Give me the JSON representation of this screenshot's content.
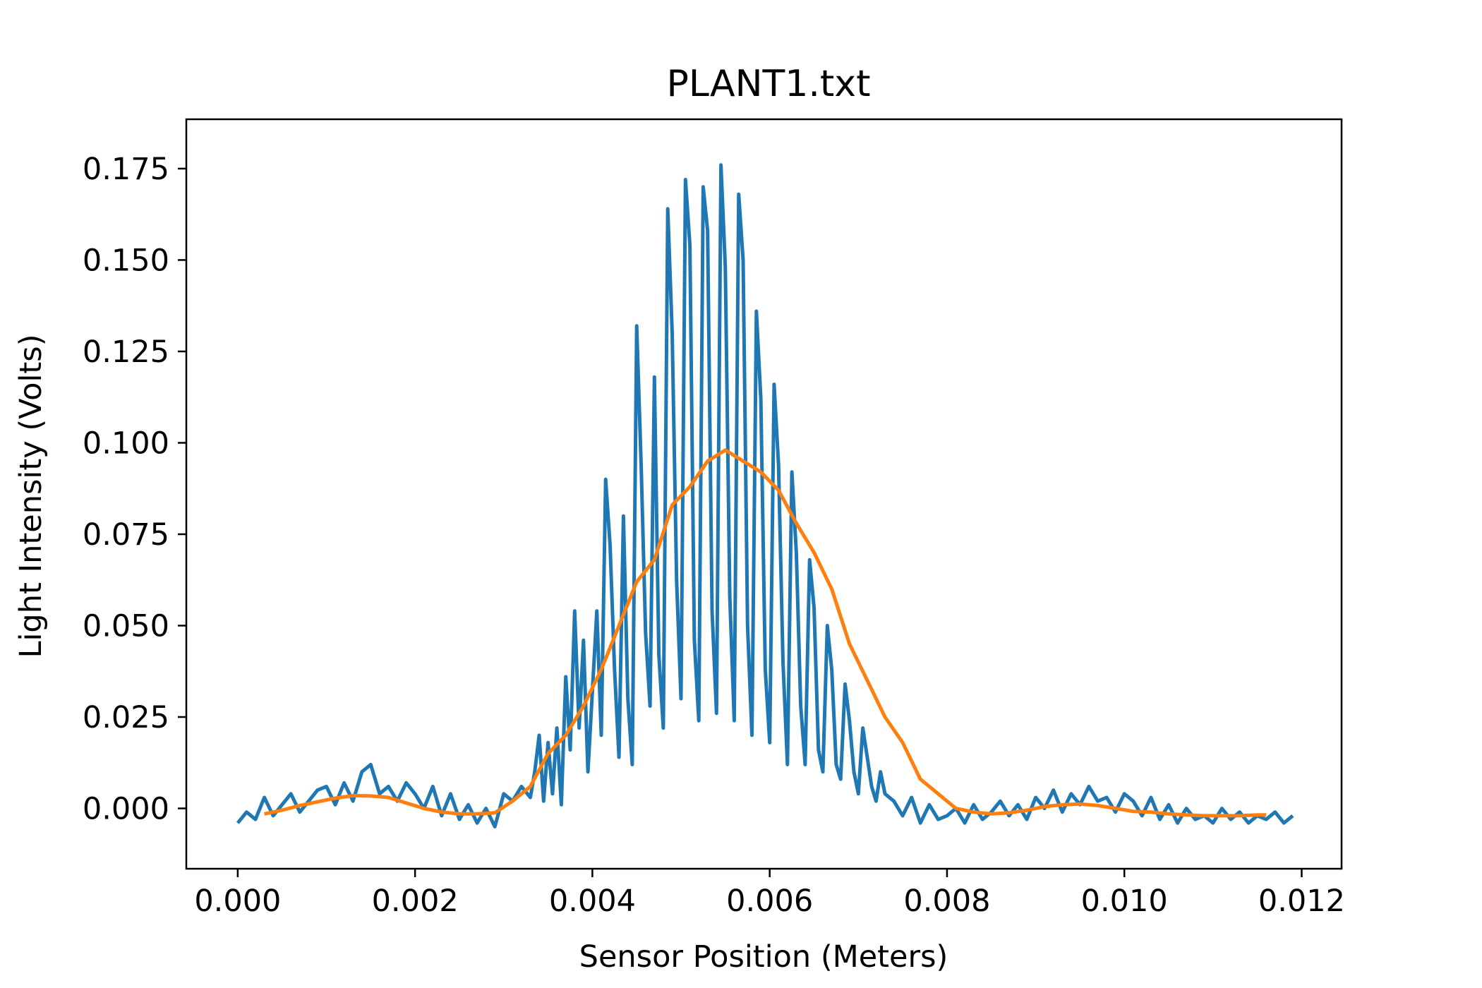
{
  "chart_data": {
    "type": "line",
    "title": "PLANT1.txt",
    "xlabel": "Sensor Position (Meters)",
    "ylabel": "Light Intensity (Volts)",
    "xlim": [
      -0.00058,
      0.01245
    ],
    "ylim": [
      -0.0165,
      0.1885
    ],
    "xticks": [
      0.0,
      0.002,
      0.004,
      0.006,
      0.008,
      0.01,
      0.012
    ],
    "xtick_labels": [
      "0.000",
      "0.002",
      "0.004",
      "0.006",
      "0.008",
      "0.010",
      "0.012"
    ],
    "yticks": [
      0.0,
      0.025,
      0.05,
      0.075,
      0.1,
      0.125,
      0.15,
      0.175
    ],
    "ytick_labels": [
      "0.000",
      "0.025",
      "0.050",
      "0.075",
      "0.100",
      "0.125",
      "0.150",
      "0.175"
    ],
    "grid": false,
    "legend": "none",
    "series": [
      {
        "color": "#1f77b4",
        "style": "raw",
        "x": [
          0.0,
          0.0001,
          0.0002,
          0.0003,
          0.0004,
          0.0005,
          0.0006,
          0.0007,
          0.0008,
          0.0009,
          0.001,
          0.0011,
          0.0012,
          0.0013,
          0.0014,
          0.0015,
          0.0016,
          0.0017,
          0.0018,
          0.0019,
          0.002,
          0.0021,
          0.0022,
          0.0023,
          0.0024,
          0.0025,
          0.0026,
          0.0027,
          0.0028,
          0.0029,
          0.003,
          0.0031,
          0.0032,
          0.0033,
          0.00335,
          0.0034,
          0.00345,
          0.0035,
          0.00355,
          0.0036,
          0.00365,
          0.0037,
          0.00375,
          0.0038,
          0.00385,
          0.0039,
          0.00395,
          0.004,
          0.00405,
          0.0041,
          0.00415,
          0.0042,
          0.00425,
          0.0043,
          0.00435,
          0.0044,
          0.00445,
          0.0045,
          0.00455,
          0.0046,
          0.00465,
          0.0047,
          0.00475,
          0.0048,
          0.00485,
          0.0049,
          0.00495,
          0.005,
          0.00505,
          0.0051,
          0.00515,
          0.0052,
          0.00525,
          0.0053,
          0.00535,
          0.0054,
          0.00545,
          0.0055,
          0.00555,
          0.0056,
          0.00565,
          0.0057,
          0.00575,
          0.0058,
          0.00585,
          0.0059,
          0.00595,
          0.006,
          0.00605,
          0.0061,
          0.00615,
          0.0062,
          0.00625,
          0.0063,
          0.00635,
          0.0064,
          0.00645,
          0.0065,
          0.00655,
          0.0066,
          0.00665,
          0.0067,
          0.00675,
          0.0068,
          0.00685,
          0.0069,
          0.00695,
          0.007,
          0.00705,
          0.0071,
          0.00715,
          0.0072,
          0.00725,
          0.0073,
          0.0074,
          0.0075,
          0.0076,
          0.0077,
          0.0078,
          0.0079,
          0.008,
          0.0081,
          0.0082,
          0.0083,
          0.0084,
          0.0085,
          0.0086,
          0.0087,
          0.0088,
          0.0089,
          0.009,
          0.0091,
          0.0092,
          0.0093,
          0.0094,
          0.0095,
          0.0096,
          0.0097,
          0.0098,
          0.0099,
          0.01,
          0.0101,
          0.0102,
          0.0103,
          0.0104,
          0.0105,
          0.0106,
          0.0107,
          0.0108,
          0.0109,
          0.011,
          0.0111,
          0.0112,
          0.0113,
          0.0114,
          0.0115,
          0.0116,
          0.0117,
          0.0118,
          0.0119
        ],
        "y": [
          -0.004,
          -0.001,
          -0.003,
          0.003,
          -0.002,
          0.001,
          0.004,
          -0.001,
          0.002,
          0.005,
          0.006,
          0.001,
          0.007,
          0.002,
          0.01,
          0.012,
          0.004,
          0.006,
          0.002,
          0.007,
          0.004,
          0.0,
          0.006,
          -0.002,
          0.004,
          -0.003,
          0.001,
          -0.004,
          0.0,
          -0.005,
          0.004,
          0.002,
          0.006,
          0.003,
          0.01,
          0.02,
          0.002,
          0.018,
          0.004,
          0.022,
          0.001,
          0.036,
          0.016,
          0.054,
          0.022,
          0.046,
          0.01,
          0.032,
          0.054,
          0.02,
          0.09,
          0.072,
          0.038,
          0.014,
          0.08,
          0.03,
          0.012,
          0.132,
          0.094,
          0.048,
          0.028,
          0.118,
          0.042,
          0.022,
          0.164,
          0.13,
          0.062,
          0.03,
          0.172,
          0.154,
          0.046,
          0.024,
          0.17,
          0.158,
          0.054,
          0.026,
          0.176,
          0.148,
          0.058,
          0.024,
          0.168,
          0.15,
          0.05,
          0.02,
          0.136,
          0.112,
          0.038,
          0.018,
          0.116,
          0.094,
          0.04,
          0.012,
          0.092,
          0.07,
          0.028,
          0.012,
          0.068,
          0.055,
          0.016,
          0.01,
          0.05,
          0.038,
          0.012,
          0.008,
          0.034,
          0.024,
          0.01,
          0.004,
          0.022,
          0.014,
          0.006,
          0.002,
          0.01,
          0.004,
          0.002,
          -0.002,
          0.003,
          -0.004,
          0.001,
          -0.003,
          -0.002,
          0.0,
          -0.004,
          0.001,
          -0.003,
          -0.001,
          0.002,
          -0.002,
          0.001,
          -0.003,
          0.003,
          0.0,
          0.005,
          -0.001,
          0.004,
          0.001,
          0.006,
          0.002,
          0.003,
          -0.001,
          0.004,
          0.002,
          -0.002,
          0.003,
          -0.003,
          0.001,
          -0.004,
          0.0,
          -0.003,
          -0.002,
          -0.004,
          0.0,
          -0.003,
          -0.001,
          -0.004,
          -0.002,
          -0.003,
          -0.001,
          -0.004,
          -0.002
        ]
      },
      {
        "color": "#ff7f0e",
        "style": "smoothed",
        "x": [
          0.0003,
          0.0005,
          0.0007,
          0.0009,
          0.0011,
          0.0013,
          0.0015,
          0.0017,
          0.0019,
          0.0021,
          0.0023,
          0.0025,
          0.0027,
          0.0029,
          0.0031,
          0.0033,
          0.0035,
          0.0037,
          0.0039,
          0.0041,
          0.0043,
          0.0045,
          0.0047,
          0.0049,
          0.0051,
          0.0053,
          0.0055,
          0.0057,
          0.0059,
          0.0061,
          0.0063,
          0.0065,
          0.0067,
          0.0069,
          0.0071,
          0.0073,
          0.0075,
          0.0077,
          0.0079,
          0.0081,
          0.0083,
          0.0085,
          0.0087,
          0.0089,
          0.0091,
          0.0093,
          0.0095,
          0.0097,
          0.0099,
          0.0101,
          0.0103,
          0.0105,
          0.0107,
          0.0109,
          0.0111,
          0.0113,
          0.0115,
          0.0116
        ],
        "y": [
          -0.0015,
          -0.0005,
          0.0008,
          0.0018,
          0.0028,
          0.0035,
          0.0034,
          0.003,
          0.0015,
          0.0,
          -0.001,
          -0.0015,
          -0.0015,
          -0.0012,
          0.002,
          0.006,
          0.015,
          0.02,
          0.028,
          0.038,
          0.05,
          0.062,
          0.068,
          0.083,
          0.088,
          0.095,
          0.098,
          0.095,
          0.092,
          0.087,
          0.078,
          0.07,
          0.06,
          0.045,
          0.035,
          0.025,
          0.018,
          0.008,
          0.004,
          0.0,
          -0.001,
          -0.0015,
          -0.0012,
          -0.0005,
          0.0005,
          0.001,
          0.0012,
          0.0008,
          0.0,
          -0.0008,
          -0.001,
          -0.0015,
          -0.0018,
          -0.002,
          -0.002,
          -0.002,
          -0.0018,
          -0.0018
        ]
      }
    ]
  }
}
